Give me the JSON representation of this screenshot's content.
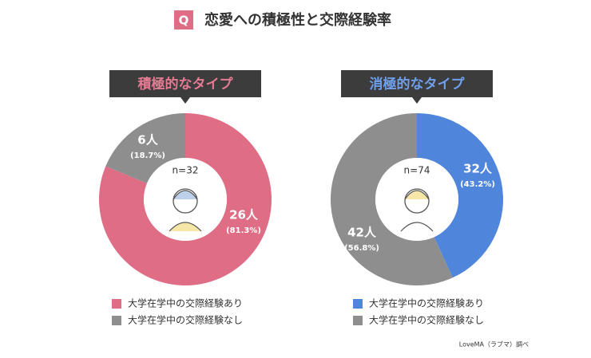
{
  "header": {
    "badge": "Q",
    "title": "恋愛への積極性と交際経験率"
  },
  "source": "LoveMA（ラブマ）調べ",
  "chart_data": [
    {
      "type": "pie",
      "title": "積極的なタイプ",
      "title_color": "#e47b93",
      "n_label": "n=32",
      "categories": [
        "大学在学中の交際経験あり",
        "大学在学中の交際経験なし"
      ],
      "values": [
        26,
        6
      ],
      "value_labels": [
        "26人",
        "6人"
      ],
      "shares": [
        81.3,
        18.7
      ],
      "share_labels": [
        "(81.3%)",
        "(18.7%)"
      ],
      "colors": [
        "#df6d86",
        "#8e8e8e"
      ]
    },
    {
      "type": "pie",
      "title": "消極的なタイプ",
      "title_color": "#6fa0ee",
      "n_label": "n=74",
      "categories": [
        "大学在学中の交際経験あり",
        "大学在学中の交際経験なし"
      ],
      "values": [
        32,
        42
      ],
      "value_labels": [
        "32人",
        "42人"
      ],
      "shares": [
        43.2,
        56.8
      ],
      "share_labels": [
        "(43.2%)",
        "(56.8%)"
      ],
      "colors": [
        "#4f86dc",
        "#8e8e8e"
      ]
    }
  ]
}
